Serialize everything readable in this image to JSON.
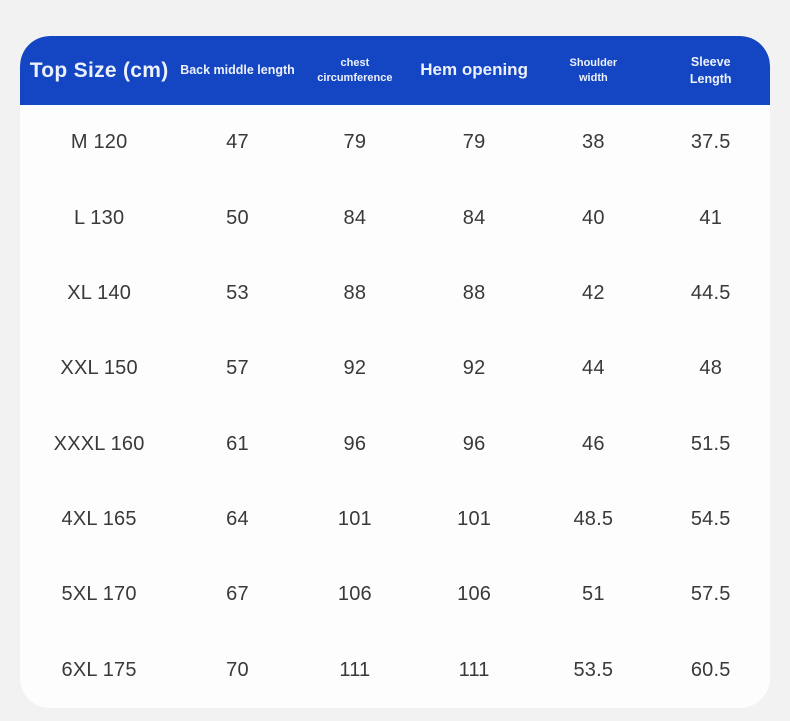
{
  "theme": {
    "page_background": "#f2f2f3",
    "card_background": "#fdfdfd",
    "header_background": "#1446c3",
    "header_text_color": "#ecf1fb",
    "body_text_color": "#39393b"
  },
  "table": {
    "header": [
      {
        "label": "Top Size (cm)",
        "lines": [
          "Top Size (cm)"
        ]
      },
      {
        "label": "Back middle length",
        "lines": [
          "Back middle length"
        ]
      },
      {
        "label": "chest circumference",
        "lines": [
          "chest",
          "circumference"
        ]
      },
      {
        "label": "Hem opening",
        "lines": [
          "Hem opening"
        ]
      },
      {
        "label": "Shoulder width",
        "lines": [
          "Shoulder",
          "width"
        ]
      },
      {
        "label": "Sleeve Length",
        "lines": [
          "Sleeve",
          "Length"
        ]
      }
    ]
  },
  "chart_data": {
    "type": "table",
    "columns": [
      "Top Size (cm)",
      "Back middle length",
      "chest circumference",
      "Hem opening",
      "Shoulder width",
      "Sleeve Length"
    ],
    "rows": [
      [
        "M 120",
        "47",
        "79",
        "79",
        "38",
        "37.5"
      ],
      [
        "L 130",
        "50",
        "84",
        "84",
        "40",
        "41"
      ],
      [
        "XL 140",
        "53",
        "88",
        "88",
        "42",
        "44.5"
      ],
      [
        "XXL 150",
        "57",
        "92",
        "92",
        "44",
        "48"
      ],
      [
        "XXXL 160",
        "61",
        "96",
        "96",
        "46",
        "51.5"
      ],
      [
        "4XL 165",
        "64",
        "101",
        "101",
        "48.5",
        "54.5"
      ],
      [
        "5XL 170",
        "67",
        "106",
        "106",
        "51",
        "57.5"
      ],
      [
        "6XL 175",
        "70",
        "111",
        "111",
        "53.5",
        "60.5"
      ]
    ]
  }
}
